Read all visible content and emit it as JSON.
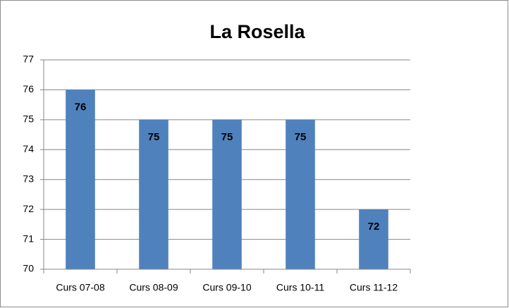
{
  "chart_data": {
    "type": "bar",
    "title": "La Rosella",
    "categories": [
      "Curs 07-08",
      "Curs 08-09",
      "Curs 09-10",
      "Curs 10-11",
      "Curs 11-12"
    ],
    "values": [
      76,
      75,
      75,
      75,
      72
    ],
    "color": "#4f81bd",
    "ylim": [
      70,
      77
    ],
    "yticks": [
      70,
      71,
      72,
      73,
      74,
      75,
      76,
      77
    ],
    "grid": true
  }
}
